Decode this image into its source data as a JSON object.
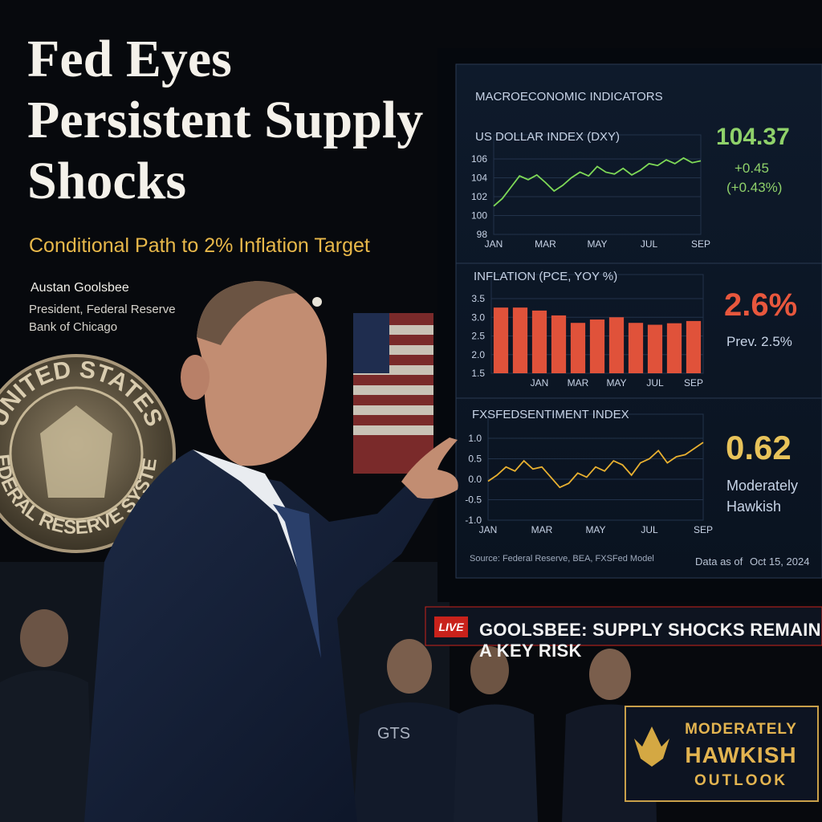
{
  "headline": "Fed Eyes Persistent Supply Shocks",
  "subtitle": "Conditional Path to 2% Inflation Target",
  "speaker": {
    "name": "Austan Goolsbee",
    "role": "President, Federal Reserve Bank of Chicago"
  },
  "seal": {
    "top": "UNITED STATES",
    "bottom": "FEDERAL RESERVE SYSTEM"
  },
  "jacket_logo": "GTS",
  "screen": {
    "title": "MACROECONOMIC INDICATORS",
    "source": "Source: Federal Reserve, BEA, FXSFed Model",
    "date_label": "Data as of",
    "date": "Oct 15, 2024"
  },
  "chart_data": [
    {
      "type": "line",
      "title": "US DOLLAR INDEX (DXY)",
      "color": "#7ed957",
      "categories": [
        "JAN",
        null,
        null,
        null,
        null,
        null,
        "MAR",
        null,
        null,
        null,
        null,
        null,
        "MAY",
        null,
        null,
        null,
        null,
        null,
        "JUL",
        null,
        null,
        null,
        null,
        null,
        "SEP"
      ],
      "values": [
        101,
        101.8,
        103,
        104.2,
        103.8,
        104.3,
        103.5,
        102.6,
        103.2,
        104,
        104.6,
        104.2,
        105.2,
        104.6,
        104.4,
        105,
        104.3,
        104.8,
        105.5,
        105.3,
        105.9,
        105.5,
        106.1,
        105.6,
        105.8
      ],
      "ylim": [
        98,
        106
      ],
      "yticks": [
        98,
        100,
        102,
        104,
        106
      ],
      "grid": true,
      "annotations": [
        "104.37",
        "+0.45",
        "(+0.43%)"
      ],
      "annotation_color": "#8fd16a"
    },
    {
      "type": "bar",
      "title": "INFLATION (PCE, YOY %)",
      "color": "#e0523a",
      "categories": [
        null,
        null,
        "JAN",
        null,
        "MAR",
        null,
        "MAY",
        null,
        "JUL",
        null,
        "SEP"
      ],
      "values": [
        3.26,
        3.26,
        3.18,
        3.05,
        2.85,
        2.94,
        3.0,
        2.85,
        2.8,
        2.84,
        2.9
      ],
      "ylim": [
        1.5,
        3.5
      ],
      "yticks": [
        1.5,
        {
          "value": 2,
          "label": "2.0"
        },
        2.5,
        {
          "value": 3,
          "label": "3.0"
        },
        3.5
      ],
      "grid": true,
      "annotations": [
        "2.6%",
        "Prev. 2.5%"
      ],
      "annotation_color": "#e8573d"
    },
    {
      "type": "line",
      "title": "FXSFEDSENTIMENT INDEX",
      "color": "#e8b030",
      "categories": [
        "JAN",
        null,
        null,
        null,
        null,
        null,
        "MAR",
        null,
        null,
        null,
        null,
        null,
        "MAY",
        null,
        null,
        null,
        null,
        null,
        "JUL",
        null,
        null,
        null,
        null,
        null,
        "SEP"
      ],
      "values": [
        -0.05,
        0.1,
        0.3,
        0.2,
        0.45,
        0.25,
        0.3,
        0.05,
        -0.2,
        -0.1,
        0.15,
        0.05,
        0.3,
        0.2,
        0.45,
        0.35,
        0.1,
        0.4,
        0.5,
        0.7,
        0.4,
        0.55,
        0.6,
        0.75,
        0.9
      ],
      "ylim": [
        -1,
        1
      ],
      "yticks": [
        {
          "value": -1,
          "label": "-1.0"
        },
        -0.5,
        {
          "value": 0,
          "label": "0.0"
        },
        0.5,
        {
          "value": 1,
          "label": "1.0"
        }
      ],
      "grid": true,
      "annotations": [
        "0.62",
        "Moderately Hawkish"
      ],
      "annotation_color": "#e8c35a"
    }
  ],
  "ticker": {
    "tag": "LIVE",
    "text": "GOOLSBEE: SUPPLY SHOCKS REMAIN A KEY RISK"
  },
  "badge": {
    "line1": "MODERATELY",
    "line2": "HAWKISH",
    "line3": "OUTLOOK"
  }
}
